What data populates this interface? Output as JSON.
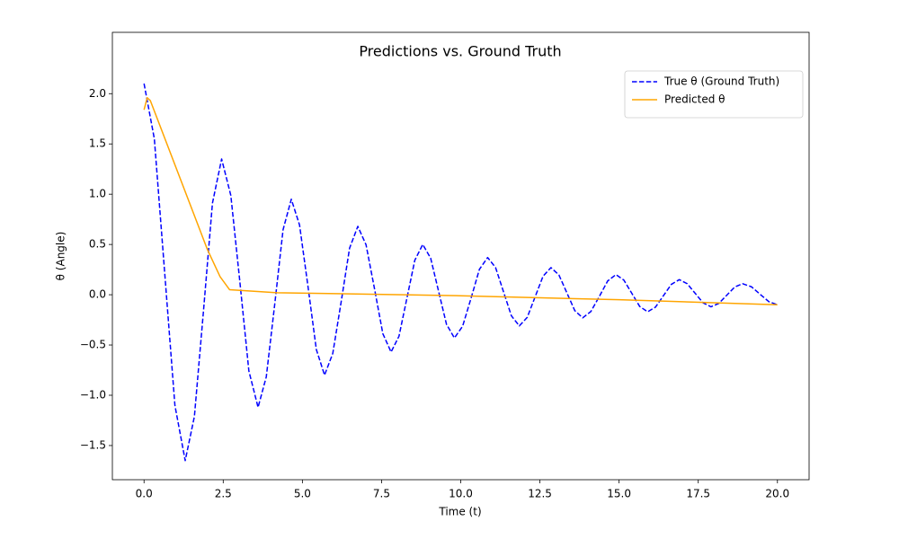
{
  "chart_data": {
    "type": "line",
    "title": "Predictions vs. Ground Truth",
    "xlabel": "Time (t)",
    "ylabel": "θ (Angle)",
    "xlim": [
      -1,
      21
    ],
    "ylim": [
      -1.84,
      2.61
    ],
    "xticks": [
      {
        "value": 0,
        "label": "0.0"
      },
      {
        "value": 2.5,
        "label": "2.5"
      },
      {
        "value": 5,
        "label": "5.0"
      },
      {
        "value": 7.5,
        "label": "7.5"
      },
      {
        "value": 10,
        "label": "10.0"
      },
      {
        "value": 12.5,
        "label": "12.5"
      },
      {
        "value": 15,
        "label": "15.0"
      },
      {
        "value": 17.5,
        "label": "17.5"
      },
      {
        "value": 20,
        "label": "20.0"
      }
    ],
    "yticks": [
      {
        "value": -1.5,
        "label": "−1.5"
      },
      {
        "value": -1,
        "label": "−1.0"
      },
      {
        "value": -0.5,
        "label": "−0.5"
      },
      {
        "value": 0,
        "label": "0.0"
      },
      {
        "value": 0.5,
        "label": "0.5"
      },
      {
        "value": 1,
        "label": "1.0"
      },
      {
        "value": 1.5,
        "label": "1.5"
      },
      {
        "value": 2,
        "label": "2.0"
      }
    ],
    "legend": "upper right",
    "series": [
      {
        "name": "True θ (Ground Truth)",
        "color": "#0000ff",
        "linestyle": "dashed",
        "x": [
          0,
          0.325,
          0.65,
          0.975,
          1.3,
          1.59,
          1.88,
          2.16,
          2.45,
          2.74,
          3.03,
          3.31,
          3.6,
          3.86,
          4.13,
          4.39,
          4.65,
          4.91,
          5.18,
          5.44,
          5.7,
          5.96,
          6.23,
          6.49,
          6.75,
          7.01,
          7.28,
          7.54,
          7.8,
          8.05,
          8.3,
          8.55,
          8.8,
          9.05,
          9.3,
          9.55,
          9.8,
          10.06,
          10.33,
          10.59,
          10.85,
          11.1,
          11.35,
          11.6,
          11.85,
          12.1,
          12.35,
          12.6,
          12.85,
          13.1,
          13.35,
          13.6,
          13.85,
          14.11,
          14.38,
          14.64,
          14.9,
          15.15,
          15.4,
          15.65,
          15.9,
          16.15,
          16.4,
          16.65,
          16.9,
          17.15,
          17.4,
          17.65,
          17.9,
          18.15,
          18.4,
          18.65,
          18.9,
          19.18,
          19.45,
          19.73,
          20
        ],
        "values": [
          2.1,
          1.551,
          0.225,
          -1.101,
          -1.65,
          -1.211,
          -0.15,
          0.911,
          1.35,
          0.988,
          0.115,
          -0.758,
          -1.12,
          -0.817,
          -0.085,
          0.647,
          0.95,
          0.694,
          0.075,
          -0.544,
          -0.8,
          -0.583,
          -0.06,
          0.463,
          0.68,
          0.497,
          0.055,
          -0.387,
          -0.57,
          -0.413,
          -0.035,
          0.343,
          0.5,
          0.364,
          0.035,
          -0.294,
          -0.43,
          -0.313,
          -0.03,
          0.253,
          0.37,
          0.27,
          0.03,
          -0.21,
          -0.31,
          -0.225,
          -0.02,
          0.185,
          0.27,
          0.197,
          0.02,
          -0.157,
          -0.23,
          -0.167,
          -0.015,
          0.137,
          0.2,
          0.146,
          0.015,
          -0.116,
          -0.17,
          -0.123,
          -0.01,
          0.103,
          0.15,
          0.11,
          0.015,
          -0.08,
          -0.12,
          -0.086,
          -0.005,
          0.076,
          0.11,
          0.079,
          0.005,
          -0.069,
          -0.1
        ]
      },
      {
        "name": "Predicted θ",
        "color": "#ffa500",
        "linestyle": "solid",
        "x": [
          0,
          0.1,
          0.2,
          2.0,
          2.4,
          2.7,
          4.2,
          10,
          15,
          20
        ],
        "values": [
          1.84,
          1.96,
          1.93,
          0.45,
          0.18,
          0.05,
          0.02,
          -0.01,
          -0.05,
          -0.1
        ]
      }
    ]
  }
}
